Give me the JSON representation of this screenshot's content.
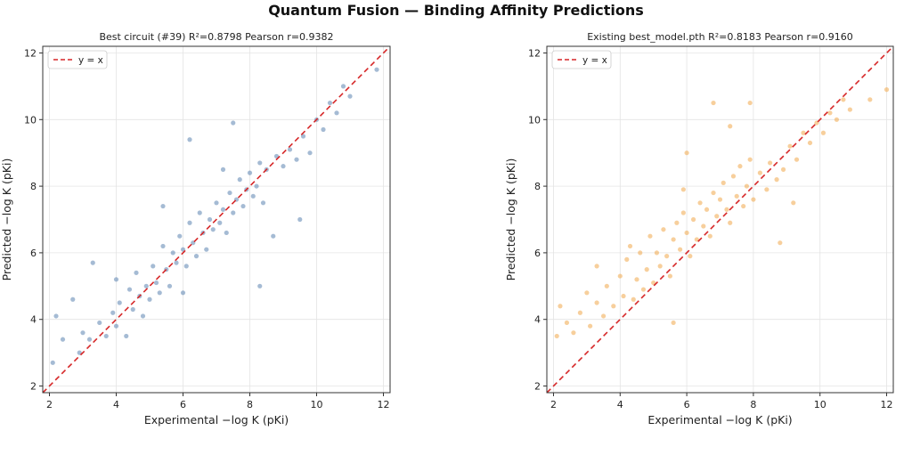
{
  "figure": {
    "title": "Quantum Fusion — Binding Affinity Predictions"
  },
  "chart_data": [
    {
      "type": "scatter",
      "title": "Best circuit (#39)  R²=0.8798  Pearson r=0.9382",
      "xlabel": "Experimental  −log K  (pKi)",
      "ylabel": "Predicted  −log K  (pKi)",
      "xlim": [
        1.8,
        12.2
      ],
      "ylim": [
        1.8,
        12.2
      ],
      "xticks": [
        "2",
        "4",
        "6",
        "8",
        "10",
        "12"
      ],
      "yticks": [
        "2",
        "4",
        "6",
        "8",
        "10",
        "12"
      ],
      "grid": true,
      "legend": {
        "location": "upper-left",
        "entries": [
          "y = x"
        ]
      },
      "reference_line": {
        "label": "y = x",
        "color": "#d62728",
        "style": "dashed"
      },
      "point_color": "#5b84b1",
      "series": [
        {
          "points": [
            [
              2.1,
              2.7
            ],
            [
              2.2,
              4.1
            ],
            [
              2.4,
              3.4
            ],
            [
              2.7,
              4.6
            ],
            [
              2.9,
              3.0
            ],
            [
              3.0,
              3.6
            ],
            [
              3.2,
              3.4
            ],
            [
              3.3,
              5.7
            ],
            [
              3.5,
              3.9
            ],
            [
              3.7,
              3.5
            ],
            [
              3.9,
              4.2
            ],
            [
              4.0,
              3.8
            ],
            [
              4.1,
              4.5
            ],
            [
              4.3,
              3.5
            ],
            [
              4.4,
              4.9
            ],
            [
              4.5,
              4.3
            ],
            [
              4.6,
              5.4
            ],
            [
              4.7,
              4.7
            ],
            [
              4.8,
              4.1
            ],
            [
              4.9,
              5.0
            ],
            [
              5.0,
              4.6
            ],
            [
              5.1,
              5.6
            ],
            [
              5.2,
              5.1
            ],
            [
              5.3,
              4.8
            ],
            [
              5.4,
              6.2
            ],
            [
              5.5,
              5.5
            ],
            [
              5.6,
              5.0
            ],
            [
              5.7,
              6.0
            ],
            [
              5.8,
              5.7
            ],
            [
              5.9,
              6.5
            ],
            [
              6.0,
              6.1
            ],
            [
              6.1,
              5.6
            ],
            [
              6.2,
              6.9
            ],
            [
              6.3,
              6.3
            ],
            [
              6.4,
              5.9
            ],
            [
              6.5,
              7.2
            ],
            [
              6.6,
              6.6
            ],
            [
              6.7,
              6.1
            ],
            [
              6.8,
              7.0
            ],
            [
              6.9,
              6.7
            ],
            [
              7.0,
              7.5
            ],
            [
              7.1,
              6.9
            ],
            [
              7.2,
              7.3
            ],
            [
              7.3,
              6.6
            ],
            [
              7.4,
              7.8
            ],
            [
              7.5,
              7.2
            ],
            [
              7.6,
              7.6
            ],
            [
              7.7,
              8.2
            ],
            [
              7.8,
              7.4
            ],
            [
              7.9,
              7.9
            ],
            [
              8.0,
              8.4
            ],
            [
              8.1,
              7.7
            ],
            [
              8.2,
              8.0
            ],
            [
              8.3,
              8.7
            ],
            [
              8.4,
              7.5
            ],
            [
              8.5,
              8.5
            ],
            [
              8.7,
              6.5
            ],
            [
              8.8,
              8.9
            ],
            [
              9.0,
              8.6
            ],
            [
              9.2,
              9.1
            ],
            [
              9.4,
              8.8
            ],
            [
              9.6,
              9.5
            ],
            [
              9.8,
              9.0
            ],
            [
              10.0,
              10.0
            ],
            [
              10.2,
              9.7
            ],
            [
              10.4,
              10.5
            ],
            [
              10.6,
              10.2
            ],
            [
              10.8,
              11.0
            ],
            [
              11.0,
              10.7
            ],
            [
              11.8,
              11.5
            ],
            [
              7.5,
              9.9
            ],
            [
              6.2,
              9.4
            ],
            [
              5.4,
              7.4
            ],
            [
              8.3,
              5.0
            ],
            [
              4.0,
              5.2
            ],
            [
              9.5,
              7.0
            ],
            [
              6.0,
              4.8
            ],
            [
              7.2,
              8.5
            ]
          ]
        }
      ]
    },
    {
      "type": "scatter",
      "title": "Existing best_model.pth  R²=0.8183  Pearson r=0.9160",
      "xlabel": "Experimental  −log K  (pKi)",
      "ylabel": "Predicted  −log K  (pKi)",
      "xlim": [
        1.8,
        12.2
      ],
      "ylim": [
        1.8,
        12.2
      ],
      "xticks": [
        "2",
        "4",
        "6",
        "8",
        "10",
        "12"
      ],
      "yticks": [
        "2",
        "4",
        "6",
        "8",
        "10",
        "12"
      ],
      "grid": true,
      "legend": {
        "location": "upper-left",
        "entries": [
          "y = x"
        ]
      },
      "reference_line": {
        "label": "y = x",
        "color": "#d62728",
        "style": "dashed"
      },
      "point_color": "#f0a84a",
      "series": [
        {
          "points": [
            [
              2.1,
              3.5
            ],
            [
              2.2,
              4.4
            ],
            [
              2.4,
              3.9
            ],
            [
              2.6,
              3.6
            ],
            [
              2.8,
              4.2
            ],
            [
              3.0,
              4.8
            ],
            [
              3.1,
              3.8
            ],
            [
              3.3,
              4.5
            ],
            [
              3.5,
              4.1
            ],
            [
              3.6,
              5.0
            ],
            [
              3.8,
              4.4
            ],
            [
              4.0,
              5.3
            ],
            [
              4.1,
              4.7
            ],
            [
              4.2,
              5.8
            ],
            [
              4.4,
              4.6
            ],
            [
              4.5,
              5.2
            ],
            [
              4.6,
              6.0
            ],
            [
              4.7,
              4.9
            ],
            [
              4.8,
              5.5
            ],
            [
              4.9,
              6.5
            ],
            [
              5.0,
              5.1
            ],
            [
              5.1,
              6.0
            ],
            [
              5.2,
              5.6
            ],
            [
              5.3,
              6.7
            ],
            [
              5.4,
              5.9
            ],
            [
              5.5,
              5.3
            ],
            [
              5.6,
              6.4
            ],
            [
              5.7,
              6.9
            ],
            [
              5.8,
              6.1
            ],
            [
              5.9,
              7.2
            ],
            [
              6.0,
              6.6
            ],
            [
              6.1,
              5.9
            ],
            [
              6.2,
              7.0
            ],
            [
              6.3,
              6.4
            ],
            [
              6.4,
              7.5
            ],
            [
              6.5,
              6.8
            ],
            [
              6.6,
              7.3
            ],
            [
              6.7,
              6.5
            ],
            [
              6.8,
              7.8
            ],
            [
              6.9,
              7.1
            ],
            [
              7.0,
              7.6
            ],
            [
              7.1,
              8.1
            ],
            [
              7.2,
              7.3
            ],
            [
              7.3,
              6.9
            ],
            [
              7.4,
              8.3
            ],
            [
              7.5,
              7.7
            ],
            [
              7.6,
              8.6
            ],
            [
              7.7,
              7.4
            ],
            [
              7.8,
              8.0
            ],
            [
              7.9,
              8.8
            ],
            [
              8.0,
              7.6
            ],
            [
              8.2,
              8.4
            ],
            [
              8.4,
              7.9
            ],
            [
              8.5,
              8.7
            ],
            [
              8.7,
              8.2
            ],
            [
              8.9,
              8.5
            ],
            [
              9.1,
              9.2
            ],
            [
              9.3,
              8.8
            ],
            [
              9.5,
              9.6
            ],
            [
              9.7,
              9.3
            ],
            [
              9.9,
              9.9
            ],
            [
              10.1,
              9.6
            ],
            [
              10.3,
              10.2
            ],
            [
              10.5,
              10.0
            ],
            [
              10.7,
              10.6
            ],
            [
              10.9,
              10.3
            ],
            [
              11.5,
              10.6
            ],
            [
              12.0,
              10.9
            ],
            [
              6.8,
              10.5
            ],
            [
              5.6,
              3.9
            ],
            [
              7.3,
              9.8
            ],
            [
              8.8,
              6.3
            ],
            [
              9.2,
              7.5
            ],
            [
              4.3,
              6.2
            ],
            [
              6.0,
              9.0
            ],
            [
              7.9,
              10.5
            ],
            [
              3.3,
              5.6
            ],
            [
              5.9,
              7.9
            ]
          ]
        }
      ]
    }
  ]
}
